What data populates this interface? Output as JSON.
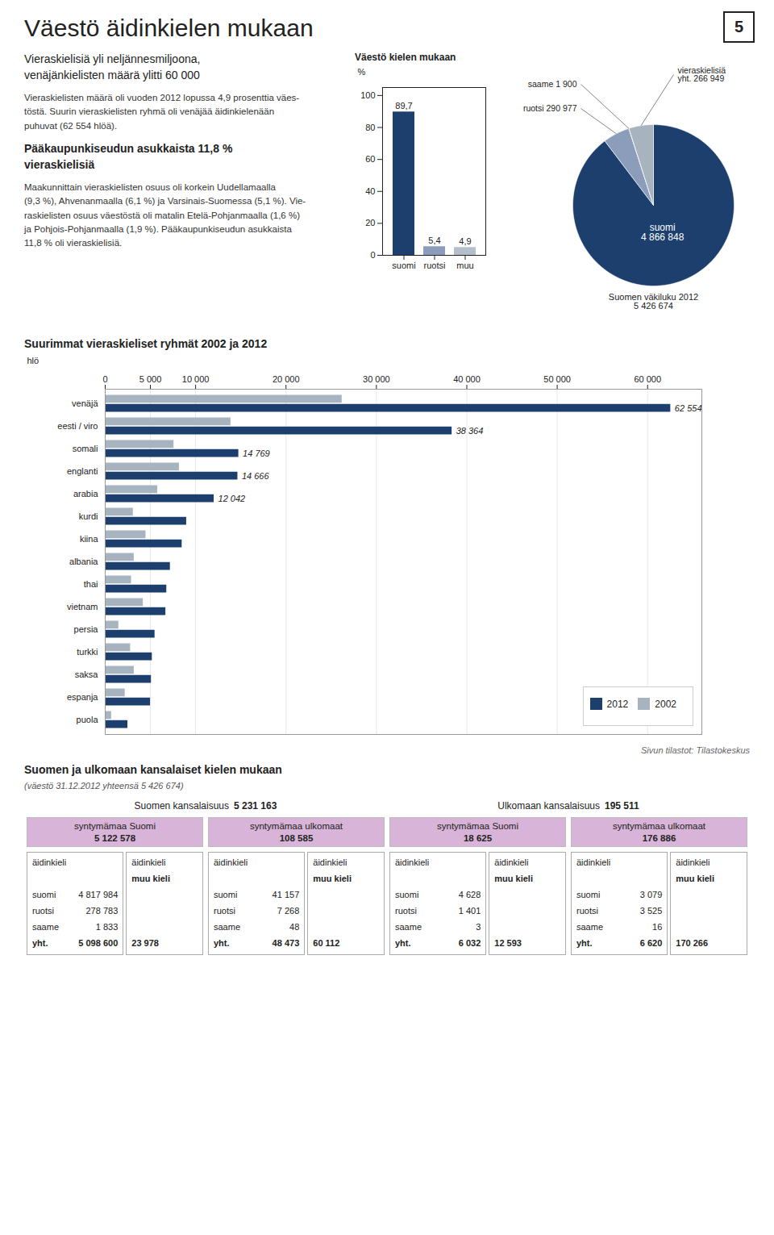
{
  "title": "Väestö äidinkielen mukaan",
  "subtitle": "Vieraskielisiä yli neljännesmiljoona,\nvenäjänkielisten määrä ylitti 60 000",
  "annotations": [
    "Vieraskielisten määrä oli vuoden 2012 lopussa 4,9 prosenttia väes-\ntöstä. Suurin vieraskielisten ryhmä oli venäjää äidinkielenään\npuhuvat (62 554 hlöä).",
    "Pääkaupunkiseudun asukkaista 11,8 %\nvieraskielisiä",
    "Maakunnittain vieraskielisten osuus oli korkein Uudellamaalla\n(9,3 %), Ahvenanmaalla (6,1 %) ja Varsinais-Suomessa (5,1 %). Vie-\nraskielisten osuus väestöstä oli matalin Etelä-Pohjanmaalla (1,6 %)\nja Pohjois-Pohjanmaalla (1,9 %). Pääkaupunkiseudun asukkaista\n11,8 % oli vieraskielisiä."
  ],
  "page_number": "5",
  "source": "Sivun tilastot: Tilastokeskus",
  "chart_data": [
    {
      "type": "bar",
      "title": "Väestö kielen mukaan",
      "categories": [
        "suomi",
        "ruotsi",
        "muu"
      ],
      "values": [
        89.7,
        5.4,
        4.9
      ],
      "value_labels": [
        "89,7",
        "5,4",
        "4,9"
      ],
      "colors": [
        "#1c3f6e",
        "#8c9dbb",
        "#b5bfcc"
      ],
      "ylabel": "%",
      "ylim": [
        0,
        105
      ],
      "yticks": [
        0,
        20,
        40,
        60,
        80,
        100
      ],
      "data_labels": true
    },
    {
      "type": "pie",
      "values": [
        4866848,
        290977,
        1900,
        266949
      ],
      "value_labels": [
        "suomi\n4 866 848",
        "ruotsi 290 977",
        "saame 1 900",
        "vieraskielisiä\nyht. 266 949"
      ],
      "colors": [
        "#1c3f6e",
        "#8c9dbb",
        "#c8a84b",
        "#a8b3c0"
      ],
      "data_labels": true,
      "annotations": [
        "Suomen väkiluku 2012\n5 426 674"
      ]
    },
    {
      "type": "bar",
      "orientation": "horizontal",
      "title": "Suurimmat vieraskieliset ryhmät 2002 ja 2012",
      "categories": [
        "venäjä",
        "eesti / viro",
        "somali",
        "englanti",
        "arabia",
        "kurdi",
        "kiina",
        "albania",
        "thai",
        "vietnam",
        "persia",
        "turkki",
        "saksa",
        "espanja",
        "puola"
      ],
      "series": [
        {
          "name": "2012",
          "color": "#1c3f6e",
          "values": [
            62554,
            38364,
            14769,
            14666,
            12042,
            9000,
            8500,
            7200,
            6800,
            6700,
            5500,
            5200,
            5100,
            5000,
            2500
          ],
          "value_labels": [
            "62 554",
            "38 364",
            "14 769",
            "14 666",
            "12 042",
            null,
            null,
            null,
            null,
            null,
            null,
            null,
            null,
            null,
            null
          ]
        },
        {
          "name": "2002",
          "color": "#a8b3c0",
          "values": [
            26200,
            13900,
            7600,
            8200,
            5800,
            3100,
            4500,
            3200,
            2900,
            4200,
            1500,
            2800,
            3200,
            2200,
            700
          ]
        }
      ],
      "xlabel": "hlö",
      "xlim": [
        0,
        66000
      ],
      "xticks": [
        0,
        {
          "value": 5000,
          "label": "5 000"
        },
        {
          "value": 10000,
          "label": "10 000"
        },
        {
          "value": 20000,
          "label": "20 000"
        },
        {
          "value": 30000,
          "label": "30 000"
        },
        {
          "value": 40000,
          "label": "40 000"
        },
        {
          "value": 50000,
          "label": "50 000"
        },
        {
          "value": 60000,
          "label": "60 000"
        }
      ],
      "grid": true,
      "legend": "lower right",
      "data_labels": true
    },
    {
      "type": "table",
      "title": "Suomen ja ulkomaan kansalaiset kielen mukaan",
      "subtitle": "(väestö 31.12.2012 yhteensä 5 426 674)",
      "color": "#d8b4d8",
      "row_header": "äidinkieli",
      "groups": [
        {
          "label": "Suomen kansalaisuus",
          "value": 5231163,
          "value_label": "5 231 163"
        },
        {
          "label": "Ulkomaan kansalaisuus",
          "value": 195511,
          "value_label": "195 511"
        }
      ],
      "columns": [
        {
          "label": "syntymämaa Suomi",
          "value": 5122578,
          "value_label": "5 122 578",
          "rows": [
            {
              "label": "suomi",
              "value": 4817984,
              "value_label": "4 817 984"
            },
            {
              "label": "ruotsi",
              "value": 278783,
              "value_label": "278 783"
            },
            {
              "label": "saame",
              "value": 1833,
              "value_label": "1 833"
            },
            {
              "label": "yht.",
              "value": 5098600,
              "value_label": "5 098 600"
            }
          ],
          "other": {
            "label": "muu kieli",
            "value": 23978,
            "value_label": "23 978"
          }
        },
        {
          "label": "syntymämaa ulkomaat",
          "value": 108585,
          "value_label": "108 585",
          "rows": [
            {
              "label": "suomi",
              "value": 41157,
              "value_label": "41 157"
            },
            {
              "label": "ruotsi",
              "value": 7268,
              "value_label": "7 268"
            },
            {
              "label": "saame",
              "value": 48,
              "value_label": "48"
            },
            {
              "label": "yht.",
              "value": 48473,
              "value_label": "48 473"
            }
          ],
          "other": {
            "label": "muu kieli",
            "value": 60112,
            "value_label": "60 112"
          }
        },
        {
          "label": "syntymämaa Suomi",
          "value": 18625,
          "value_label": "18 625",
          "rows": [
            {
              "label": "suomi",
              "value": 4628,
              "value_label": "4 628"
            },
            {
              "label": "ruotsi",
              "value": 1401,
              "value_label": "1 401"
            },
            {
              "label": "saame",
              "value": 3,
              "value_label": "3"
            },
            {
              "label": "yht.",
              "value": 6032,
              "value_label": "6 032"
            }
          ],
          "other": {
            "label": "muu kieli",
            "value": 12593,
            "value_label": "12 593"
          }
        },
        {
          "label": "syntymämaa ulkomaat",
          "value": 176886,
          "value_label": "176 886",
          "rows": [
            {
              "label": "suomi",
              "value": 3079,
              "value_label": "3 079"
            },
            {
              "label": "ruotsi",
              "value": 3525,
              "value_label": "3 525"
            },
            {
              "label": "saame",
              "value": 16,
              "value_label": "16"
            },
            {
              "label": "yht.",
              "value": 6620,
              "value_label": "6 620"
            }
          ],
          "other": {
            "label": "muu kieli",
            "value": 170266,
            "value_label": "170 266"
          }
        }
      ]
    }
  ]
}
